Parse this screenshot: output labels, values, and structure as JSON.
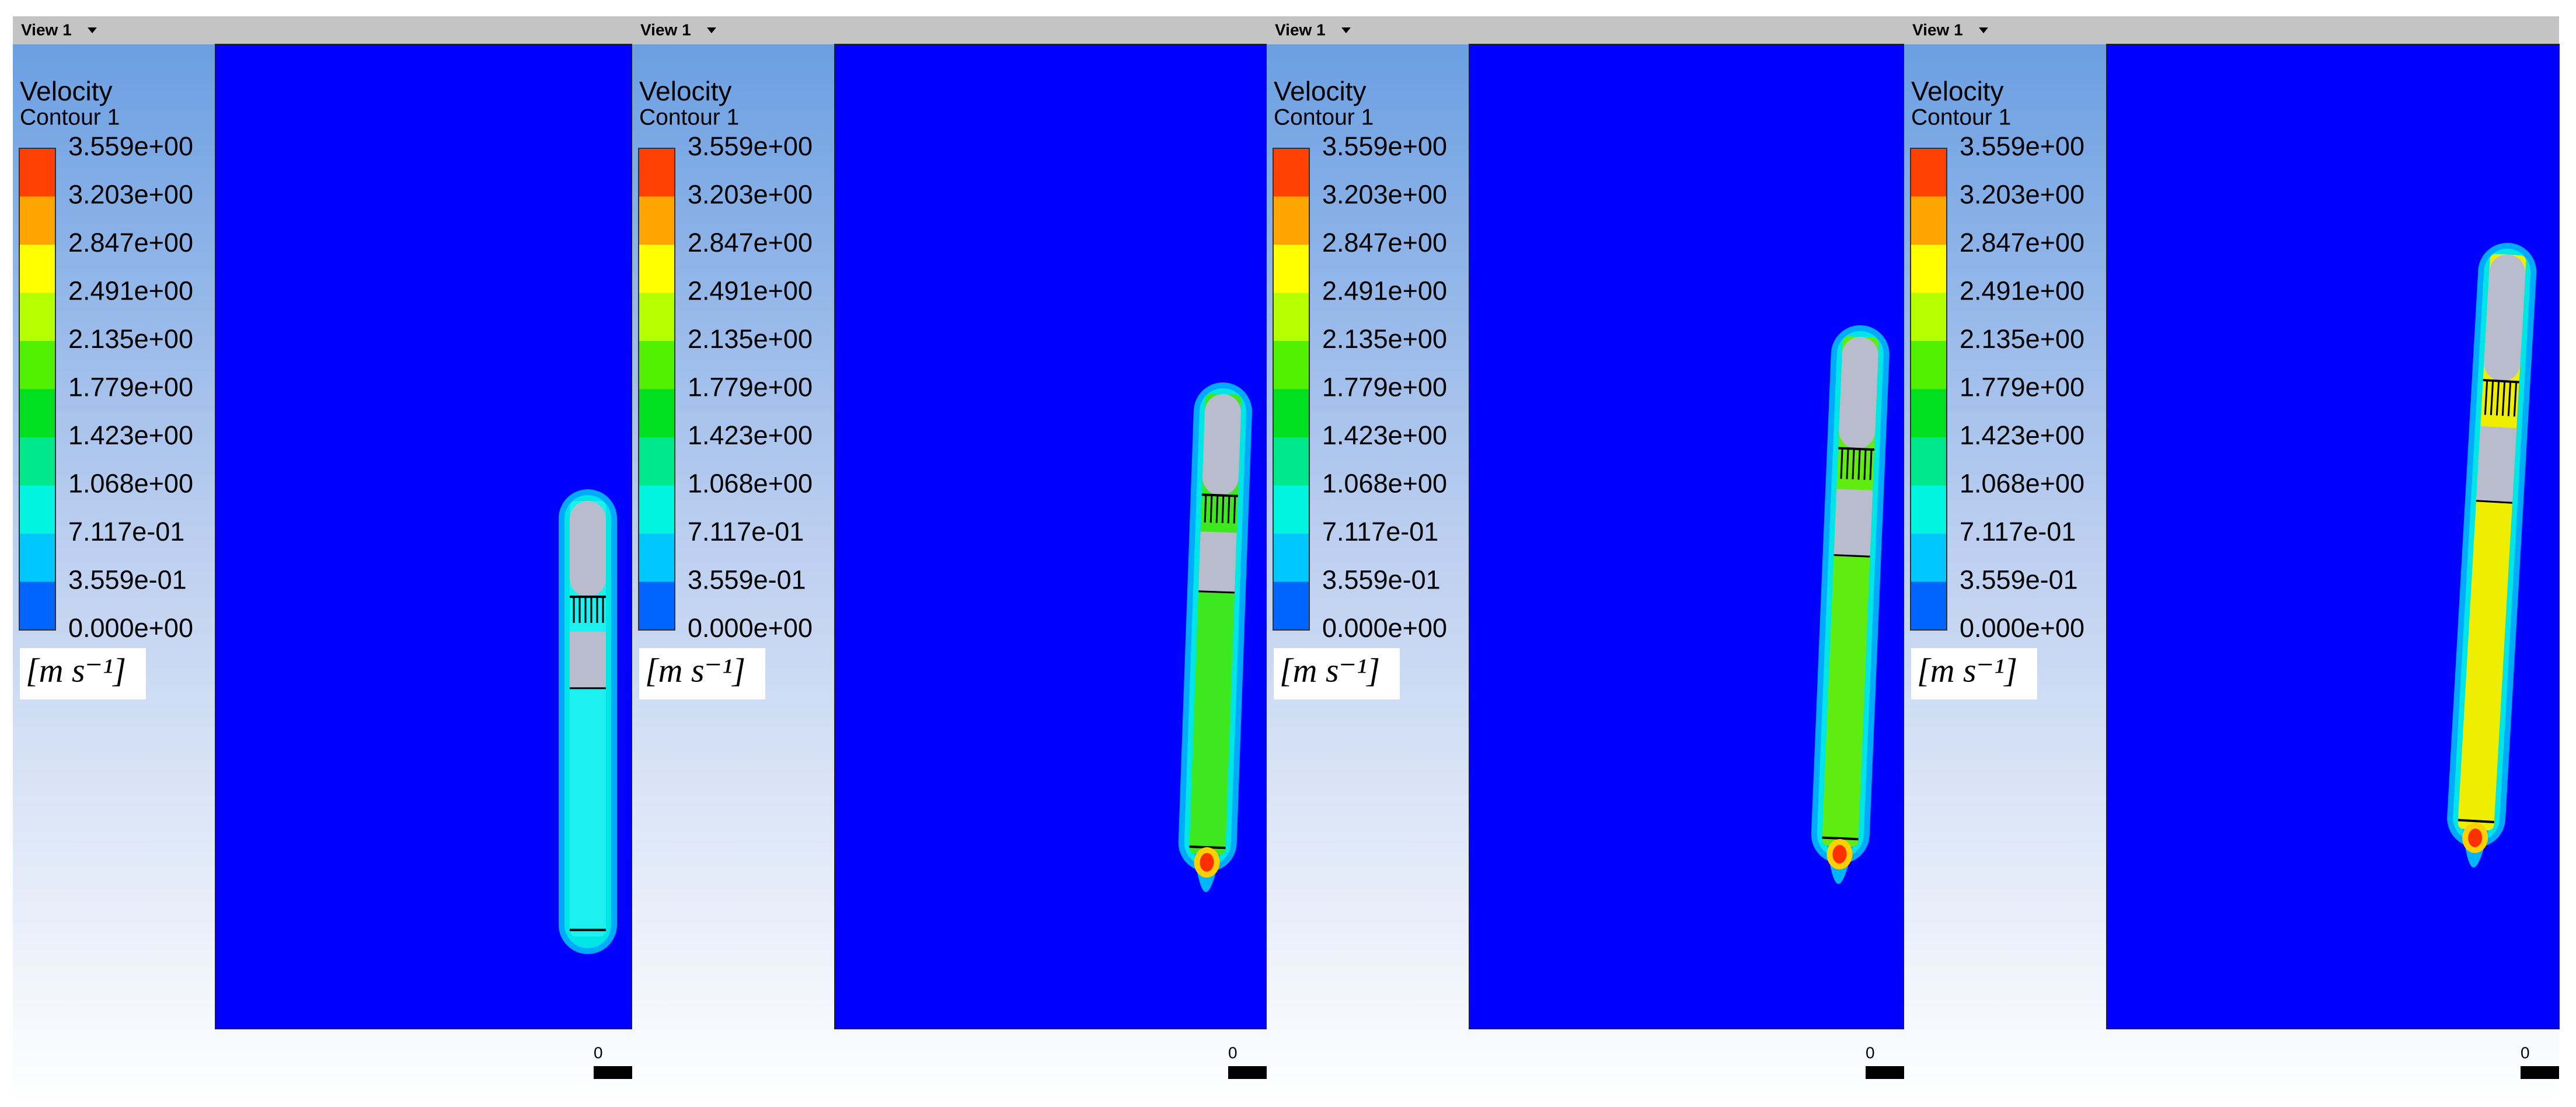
{
  "panels": [
    {
      "view_label": "View 1",
      "legend": {
        "title": "Velocity",
        "subtitle": "Contour 1",
        "levels": [
          "3.559e+00",
          "3.203e+00",
          "2.847e+00",
          "2.491e+00",
          "2.135e+00",
          "1.779e+00",
          "1.423e+00",
          "1.068e+00",
          "7.117e-01",
          "3.559e-01",
          "0.000e+00"
        ],
        "unit": "[m s⁻¹]"
      },
      "scale_label": "0"
    },
    {
      "view_label": "View 1",
      "legend": {
        "title": "Velocity",
        "subtitle": "Contour 1",
        "levels": [
          "3.559e+00",
          "3.203e+00",
          "2.847e+00",
          "2.491e+00",
          "2.135e+00",
          "1.779e+00",
          "1.423e+00",
          "1.068e+00",
          "7.117e-01",
          "3.559e-01",
          "0.000e+00"
        ],
        "unit": "[m s⁻¹]"
      },
      "scale_label": "0"
    },
    {
      "view_label": "View 1",
      "legend": {
        "title": "Velocity",
        "subtitle": "Contour 1",
        "levels": [
          "3.559e+00",
          "3.203e+00",
          "2.847e+00",
          "2.491e+00",
          "2.135e+00",
          "1.779e+00",
          "1.423e+00",
          "1.068e+00",
          "7.117e-01",
          "3.559e-01",
          "0.000e+00"
        ],
        "unit": "[m s⁻¹]"
      },
      "scale_label": "0"
    },
    {
      "view_label": "View 1",
      "legend": {
        "title": "Velocity",
        "subtitle": "Contour 1",
        "levels": [
          "3.559e+00",
          "3.203e+00",
          "2.847e+00",
          "2.491e+00",
          "2.135e+00",
          "1.779e+00",
          "1.423e+00",
          "1.068e+00",
          "7.117e-01",
          "3.559e-01",
          "0.000e+00"
        ],
        "unit": "[m s⁻¹]"
      },
      "scale_label": "0"
    }
  ]
}
